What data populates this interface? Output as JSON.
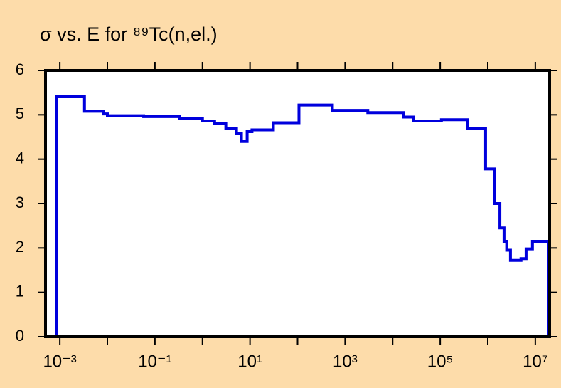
{
  "chart_data": {
    "type": "step",
    "title": "σ vs. E for ⁸⁹Tc(n,el.)",
    "color": "#0000dd",
    "xscale": "log",
    "xlim": [
      0.0005,
      20000000
    ],
    "ylim": [
      0,
      6
    ],
    "yticks": [
      0,
      1,
      2,
      3,
      4,
      5,
      6
    ],
    "xticks": [
      {
        "value": 0.001,
        "label": "10⁻³"
      },
      {
        "value": 0.1,
        "label": "10⁻¹"
      },
      {
        "value": 10,
        "label": "10¹"
      },
      {
        "value": 1000,
        "label": "10³"
      },
      {
        "value": 100000,
        "label": "10⁵"
      },
      {
        "value": 10000000,
        "label": "10⁷"
      }
    ],
    "xminor_ticks": [
      0.01,
      1,
      100,
      10000,
      1000000
    ],
    "x": [
      0.00084,
      0.0033,
      0.0082,
      0.01,
      0.058,
      0.33,
      1.0,
      1.8,
      3.1,
      5.2,
      6.6,
      8.7,
      11,
      31,
      107,
      540,
      3000,
      17000,
      27000,
      106000,
      380000,
      900000,
      1400000,
      1800000,
      2200000,
      2500000,
      3000000,
      5000000,
      6400000,
      8700000,
      19000000
    ],
    "values": [
      5.42,
      5.08,
      5.02,
      4.98,
      4.96,
      4.92,
      4.86,
      4.8,
      4.7,
      4.58,
      4.4,
      4.62,
      4.66,
      4.82,
      5.22,
      5.1,
      5.05,
      4.95,
      4.86,
      4.89,
      4.7,
      3.78,
      3.0,
      2.45,
      2.15,
      1.95,
      1.72,
      1.76,
      1.98,
      2.15,
      0
    ]
  }
}
